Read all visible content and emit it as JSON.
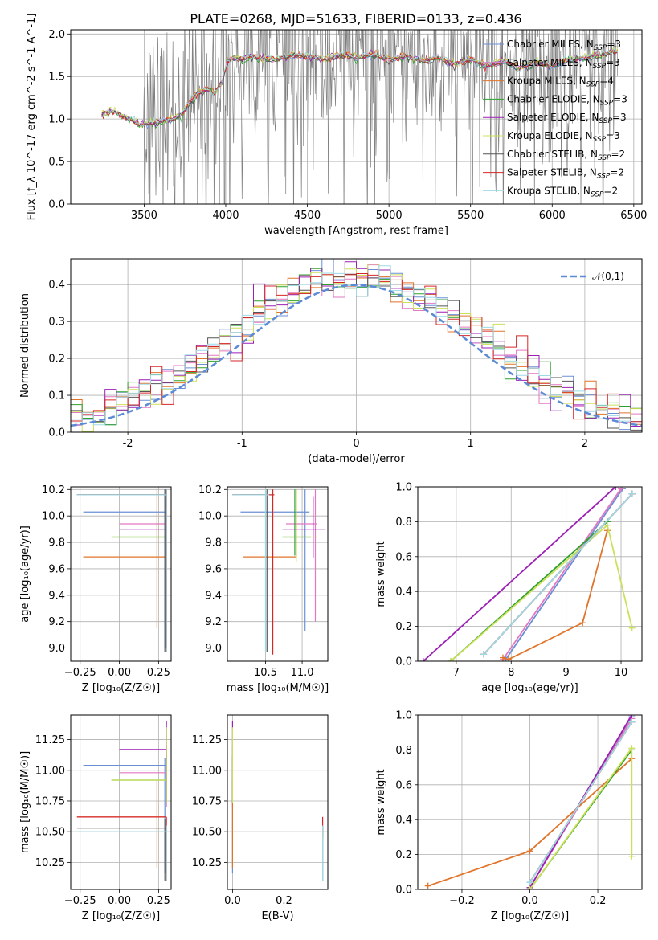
{
  "figure": {
    "title": "PLATE=0268, MJD=51633, FIBERID=0133, z=0.436"
  },
  "colors": {
    "Chabrier MILES": "#6b8fd6",
    "Salpeter MILES": "#e377c2",
    "Kroupa MILES": "#e0742a",
    "Chabrier ELODIE": "#2ca02c",
    "Salpeter ELODIE": "#9b1fb5",
    "Kroupa ELODIE": "#cbe05a",
    "Chabrier STELIB": "#555555",
    "Salpeter STELIB": "#d62728",
    "Kroupa STELIB": "#9edae5",
    "data": "#808080",
    "normal": "#5b8ad6"
  },
  "chart_data": [
    {
      "id": "spectrum",
      "type": "line",
      "title": "PLATE=0268, MJD=51633, FIBERID=0133, z=0.436",
      "xlabel": "wavelength [Angstrom, rest frame]",
      "ylabel": "Flux [f_λ 10^-17 erg cm^-2 s^-1 A^-1]",
      "xlim": [
        3050,
        6550
      ],
      "ylim": [
        0,
        2.05
      ],
      "xticks": [
        3500,
        4000,
        4500,
        5000,
        5500,
        6000,
        6500
      ],
      "yticks": [
        0.0,
        0.5,
        1.0,
        1.5,
        2.0
      ],
      "legend_position": "top-right",
      "legend": [
        {
          "label": "Chabrier MILES, N",
          "sub": "SSP",
          "val": "=3"
        },
        {
          "label": "Salpeter MILES, N",
          "sub": "SSP",
          "val": "=3"
        },
        {
          "label": "Kroupa MILES, N",
          "sub": "SSP",
          "val": "=4"
        },
        {
          "label": "Chabrier ELODIE, N",
          "sub": "SSP",
          "val": "=3"
        },
        {
          "label": "Salpeter ELODIE, N",
          "sub": "SSP",
          "val": "=3"
        },
        {
          "label": "Kroupa ELODIE, N",
          "sub": "SSP",
          "val": "=3"
        },
        {
          "label": "Chabrier STELIB, N",
          "sub": "SSP",
          "val": "=2"
        },
        {
          "label": "Salpeter STELIB, N",
          "sub": "SSP",
          "val": "=2"
        },
        {
          "label": "Kroupa STELIB, N",
          "sub": "SSP",
          "val": "=2"
        }
      ],
      "model_continuum": {
        "x": [
          3240,
          3290,
          3330,
          3380,
          3430,
          3480,
          3520,
          3570,
          3620,
          3680,
          3730,
          3780,
          3830,
          3880,
          3930,
          3980,
          4010,
          4050,
          4100,
          4150,
          4200,
          4300,
          4400,
          4500,
          4600,
          4700,
          4800,
          4900,
          5000,
          5100,
          5200,
          5300,
          5400,
          5500,
          5600,
          5700,
          5800,
          5900,
          6000,
          6100,
          6200,
          6300,
          6400
        ],
        "y": [
          1.05,
          1.1,
          1.07,
          1.02,
          0.98,
          0.93,
          0.94,
          0.96,
          0.98,
          1.0,
          1.05,
          1.2,
          1.3,
          1.35,
          1.3,
          1.45,
          1.68,
          1.72,
          1.7,
          1.74,
          1.72,
          1.7,
          1.75,
          1.74,
          1.7,
          1.76,
          1.72,
          1.76,
          1.7,
          1.74,
          1.68,
          1.72,
          1.65,
          1.7,
          1.62,
          1.68,
          1.6,
          1.66,
          1.62,
          1.7,
          1.72,
          1.75,
          1.8
        ]
      },
      "data_noise_range": [
        3500,
        6400
      ]
    },
    {
      "id": "residuals",
      "type": "line",
      "xlabel": "(data-model)/error",
      "ylabel": "Normed distribution",
      "xlim": [
        -2.5,
        2.5
      ],
      "ylim": [
        0,
        0.47
      ],
      "xticks": [
        -2,
        -1,
        0,
        1,
        2
      ],
      "yticks": [
        0.0,
        0.1,
        0.2,
        0.3,
        0.4
      ],
      "legend_position": "top-right",
      "normal_label": "𝒩(0,1)",
      "bin_width": 0.1
    },
    {
      "id": "age-vs-Z",
      "type": "scatter",
      "xlabel": "Z [log₁₀(Z/Z☉)]",
      "ylabel": "age  [log₁₀(age/yr)]",
      "xlim": [
        -0.31,
        0.33
      ],
      "ylim": [
        8.9,
        10.22
      ],
      "xticks": [
        -0.25,
        0.0,
        0.25
      ],
      "xticklabels": [
        "−0.25",
        "0.00",
        "0.25"
      ],
      "yticks": [
        9.0,
        9.2,
        9.4,
        9.6,
        9.8,
        10.0,
        10.2
      ],
      "points": [
        {
          "model": "Chabrier MILES",
          "x": 0.29,
          "y": 10.03,
          "xmin": -0.23,
          "xmax": 0.3,
          "ymin": 9.0,
          "ymax": 10.2
        },
        {
          "model": "Salpeter MILES",
          "x": 0.3,
          "y": 9.94,
          "xmin": 0.0,
          "xmax": 0.3,
          "ymin": 9.1,
          "ymax": 10.2
        },
        {
          "model": "Kroupa MILES",
          "x": 0.24,
          "y": 9.69,
          "xmin": -0.23,
          "xmax": 0.3,
          "ymin": 9.15,
          "ymax": 10.2
        },
        {
          "model": "Chabrier ELODIE",
          "x": 0.3,
          "y": 9.84,
          "xmin": -0.05,
          "xmax": 0.3,
          "ymin": 9.0,
          "ymax": 10.2
        },
        {
          "model": "Salpeter ELODIE",
          "x": 0.3,
          "y": 9.9,
          "xmin": 0.0,
          "xmax": 0.3,
          "ymin": 9.0,
          "ymax": 10.2
        },
        {
          "model": "Kroupa ELODIE",
          "x": 0.3,
          "y": 9.84,
          "xmin": -0.05,
          "xmax": 0.3,
          "ymin": 9.0,
          "ymax": 10.2
        },
        {
          "model": "Chabrier STELIB",
          "x": 0.29,
          "y": 10.16,
          "xmin": -0.27,
          "xmax": 0.3,
          "ymin": 8.97,
          "ymax": 10.2
        },
        {
          "model": "Salpeter STELIB",
          "x": 0.3,
          "y": 10.16,
          "xmin": -0.27,
          "xmax": 0.3,
          "ymin": 8.97,
          "ymax": 10.2
        },
        {
          "model": "Kroupa STELIB",
          "x": 0.3,
          "y": 10.16,
          "xmin": -0.27,
          "xmax": 0.3,
          "ymin": 8.97,
          "ymax": 10.2
        }
      ]
    },
    {
      "id": "age-vs-mass",
      "type": "scatter",
      "xlabel": "mass [log₁₀(M/M☉)]",
      "ylabel": "",
      "xlim": [
        9.98,
        11.35
      ],
      "ylim": [
        8.9,
        10.22
      ],
      "xticks": [
        10.5,
        11.0
      ],
      "xticklabels": [
        "10.5",
        "11.0"
      ],
      "yticks": [
        9.0,
        9.2,
        9.4,
        9.6,
        9.8,
        10.0,
        10.2
      ],
      "points": [
        {
          "model": "Chabrier MILES",
          "x": 11.04,
          "y": 10.03,
          "xmin": 10.16,
          "xmax": 11.1,
          "ymin": 9.13,
          "ymax": 10.2
        },
        {
          "model": "Salpeter MILES",
          "x": 11.18,
          "y": 9.94,
          "xmin": 10.78,
          "xmax": 11.2,
          "ymin": 9.2,
          "ymax": 10.2
        },
        {
          "model": "Kroupa MILES",
          "x": 10.92,
          "y": 9.69,
          "xmin": 10.2,
          "xmax": 10.92,
          "ymin": 9.68,
          "ymax": 10.2
        },
        {
          "model": "Chabrier ELODIE",
          "x": 10.9,
          "y": 9.84,
          "xmin": 10.73,
          "xmax": 11.12,
          "ymin": 9.7,
          "ymax": 10.2
        },
        {
          "model": "Salpeter ELODIE",
          "x": 11.15,
          "y": 9.9,
          "xmin": 10.73,
          "xmax": 11.32,
          "ymin": 9.68,
          "ymax": 10.15
        },
        {
          "model": "Kroupa ELODIE",
          "x": 10.92,
          "y": 9.84,
          "xmin": 10.73,
          "xmax": 11.2,
          "ymin": 9.65,
          "ymax": 10.2
        },
        {
          "model": "Chabrier STELIB",
          "x": 10.52,
          "y": 10.16,
          "xmin": 10.05,
          "xmax": 10.55,
          "ymin": 8.97,
          "ymax": 10.2
        },
        {
          "model": "Salpeter STELIB",
          "x": 10.6,
          "y": 10.16,
          "xmin": 10.05,
          "xmax": 10.62,
          "ymin": 8.95,
          "ymax": 10.2
        },
        {
          "model": "Kroupa STELIB",
          "x": 10.5,
          "y": 10.16,
          "xmin": 10.05,
          "xmax": 10.55,
          "ymin": 8.97,
          "ymax": 10.2
        }
      ]
    },
    {
      "id": "weight-vs-age",
      "type": "line",
      "xlabel": "age  [log₁₀(age/yr)]",
      "ylabel": "mass weight",
      "xlim": [
        6.3,
        10.38
      ],
      "ylim": [
        0.0,
        1.0
      ],
      "xticks": [
        7,
        8,
        9,
        10
      ],
      "yticks": [
        0.0,
        0.2,
        0.4,
        0.6,
        0.8,
        1.0
      ],
      "series": [
        {
          "model": "Chabrier MILES",
          "x": [
            7.9,
            10.03
          ],
          "y": [
            0.01,
            0.99
          ]
        },
        {
          "model": "Salpeter MILES",
          "x": [
            7.85,
            10.0
          ],
          "y": [
            0.01,
            0.99
          ]
        },
        {
          "model": "Kroupa MILES",
          "x": [
            7.85,
            7.95,
            9.3,
            9.75
          ],
          "y": [
            0.02,
            0.01,
            0.22,
            0.75
          ]
        },
        {
          "model": "Chabrier ELODIE",
          "x": [
            6.9,
            9.75
          ],
          "y": [
            0.0,
            0.8
          ]
        },
        {
          "model": "Salpeter ELODIE",
          "x": [
            6.4,
            9.9
          ],
          "y": [
            0.0,
            1.0
          ]
        },
        {
          "model": "Kroupa ELODIE",
          "x": [
            6.9,
            9.75,
            10.2
          ],
          "y": [
            0.0,
            0.78,
            0.19
          ]
        },
        {
          "model": "Chabrier STELIB",
          "x": [
            7.5,
            10.2
          ],
          "y": [
            0.04,
            0.96
          ]
        },
        {
          "model": "Salpeter STELIB",
          "x": [
            7.5,
            10.2
          ],
          "y": [
            0.04,
            0.96
          ]
        },
        {
          "model": "Kroupa STELIB",
          "x": [
            7.5,
            10.2
          ],
          "y": [
            0.04,
            0.96
          ]
        }
      ]
    },
    {
      "id": "mass-vs-Z",
      "type": "scatter",
      "xlabel": "Z [log₁₀(Z/Z☉)]",
      "ylabel": "mass [log₁₀(M/M☉)]",
      "xlim": [
        -0.31,
        0.33
      ],
      "ylim": [
        10.03,
        11.45
      ],
      "xticks": [
        -0.25,
        0.0,
        0.25
      ],
      "xticklabels": [
        "−0.25",
        "0.00",
        "0.25"
      ],
      "yticks": [
        10.25,
        10.5,
        10.75,
        11.0,
        11.25
      ],
      "points": [
        {
          "model": "Chabrier MILES",
          "x": 0.29,
          "y": 11.04,
          "xmin": -0.23,
          "xmax": 0.3,
          "ymin": 10.16,
          "ymax": 11.1
        },
        {
          "model": "Salpeter MILES",
          "x": 0.3,
          "y": 10.98,
          "xmin": 0.0,
          "xmax": 0.3,
          "ymin": 10.7,
          "ymax": 11.2
        },
        {
          "model": "Kroupa MILES",
          "x": 0.24,
          "y": 10.62,
          "xmin": -0.27,
          "xmax": 0.3,
          "ymin": 10.2,
          "ymax": 10.92
        },
        {
          "model": "Chabrier ELODIE",
          "x": 0.3,
          "y": 10.92,
          "xmin": -0.05,
          "xmax": 0.3,
          "ymin": 10.73,
          "ymax": 11.12
        },
        {
          "model": "Salpeter ELODIE",
          "x": 0.3,
          "y": 11.17,
          "xmin": 0.0,
          "xmax": 0.3,
          "ymin": 10.73,
          "ymax": 11.4
        },
        {
          "model": "Kroupa ELODIE",
          "x": 0.3,
          "y": 10.92,
          "xmin": -0.05,
          "xmax": 0.3,
          "ymin": 10.73,
          "ymax": 11.35
        },
        {
          "model": "Chabrier STELIB",
          "x": 0.29,
          "y": 10.53,
          "xmin": -0.27,
          "xmax": 0.3,
          "ymin": 10.1,
          "ymax": 10.6
        },
        {
          "model": "Salpeter STELIB",
          "x": 0.3,
          "y": 10.62,
          "xmin": -0.27,
          "xmax": 0.3,
          "ymin": 10.1,
          "ymax": 10.62
        },
        {
          "model": "Kroupa STELIB",
          "x": 0.3,
          "y": 10.5,
          "xmin": -0.27,
          "xmax": 0.3,
          "ymin": 10.1,
          "ymax": 10.55
        }
      ]
    },
    {
      "id": "mass-vs-EBV",
      "type": "scatter",
      "xlabel": "E(B-V)",
      "ylabel": "",
      "xlim": [
        -0.02,
        0.37
      ],
      "ylim": [
        10.03,
        11.45
      ],
      "xticks": [
        0.0,
        0.2
      ],
      "xticklabels": [
        "0.0",
        "0.2"
      ],
      "yticks": [
        10.25,
        10.5,
        10.75,
        11.0,
        11.25
      ],
      "points": [
        {
          "model": "Chabrier MILES",
          "x": 0.0,
          "y": 11.04,
          "ymin": 10.16,
          "ymax": 11.1
        },
        {
          "model": "Salpeter MILES",
          "x": 0.0,
          "y": 10.98,
          "ymin": 10.7,
          "ymax": 11.2
        },
        {
          "model": "Kroupa MILES",
          "x": 0.0,
          "y": 10.62,
          "ymin": 10.2,
          "ymax": 10.92
        },
        {
          "model": "Chabrier ELODIE",
          "x": 0.0,
          "y": 10.92,
          "ymin": 10.73,
          "ymax": 11.12
        },
        {
          "model": "Salpeter ELODIE",
          "x": 0.0,
          "y": 11.17,
          "ymin": 10.73,
          "ymax": 11.4
        },
        {
          "model": "Kroupa ELODIE",
          "x": 0.0,
          "y": 10.92,
          "ymin": 10.73,
          "ymax": 11.35
        },
        {
          "model": "Chabrier STELIB",
          "x": 0.35,
          "y": 10.53,
          "ymin": 10.1,
          "ymax": 10.55
        },
        {
          "model": "Salpeter STELIB",
          "x": 0.35,
          "y": 10.62,
          "ymin": 10.45,
          "ymax": 10.62
        },
        {
          "model": "Kroupa STELIB",
          "x": 0.35,
          "y": 10.5,
          "ymin": 10.1,
          "ymax": 10.55
        }
      ]
    },
    {
      "id": "weight-vs-Z",
      "type": "line",
      "xlabel": "Z [log₁₀(Z/Z☉)]",
      "ylabel": "mass weight",
      "xlim": [
        -0.33,
        0.33
      ],
      "ylim": [
        0.0,
        1.0
      ],
      "xticks": [
        -0.2,
        0.0,
        0.2
      ],
      "xticklabels": [
        "−0.2",
        "0.0",
        "0.2"
      ],
      "yticks": [
        0.0,
        0.2,
        0.4,
        0.6,
        0.8,
        1.0
      ],
      "series": [
        {
          "model": "Chabrier MILES",
          "x": [
            0.0,
            0.3
          ],
          "y": [
            0.01,
            0.99
          ]
        },
        {
          "model": "Salpeter MILES",
          "x": [
            0.0,
            0.3
          ],
          "y": [
            0.01,
            0.98
          ]
        },
        {
          "model": "Kroupa MILES",
          "x": [
            -0.3,
            0.0,
            0.3
          ],
          "y": [
            0.02,
            0.22,
            0.75
          ]
        },
        {
          "model": "Chabrier ELODIE",
          "x": [
            0.0,
            0.3
          ],
          "y": [
            0.0,
            0.8
          ]
        },
        {
          "model": "Salpeter ELODIE",
          "x": [
            0.0,
            0.3
          ],
          "y": [
            0.01,
            1.0
          ]
        },
        {
          "model": "Kroupa ELODIE",
          "x": [
            0.0,
            0.3,
            0.3
          ],
          "y": [
            0.0,
            0.81,
            0.19
          ]
        },
        {
          "model": "Chabrier STELIB",
          "x": [
            0.0,
            0.3
          ],
          "y": [
            0.04,
            0.96
          ]
        },
        {
          "model": "Salpeter STELIB",
          "x": [
            0.0,
            0.3
          ],
          "y": [
            0.04,
            0.96
          ]
        },
        {
          "model": "Kroupa STELIB",
          "x": [
            0.0,
            0.3
          ],
          "y": [
            0.04,
            0.96
          ]
        }
      ]
    }
  ]
}
